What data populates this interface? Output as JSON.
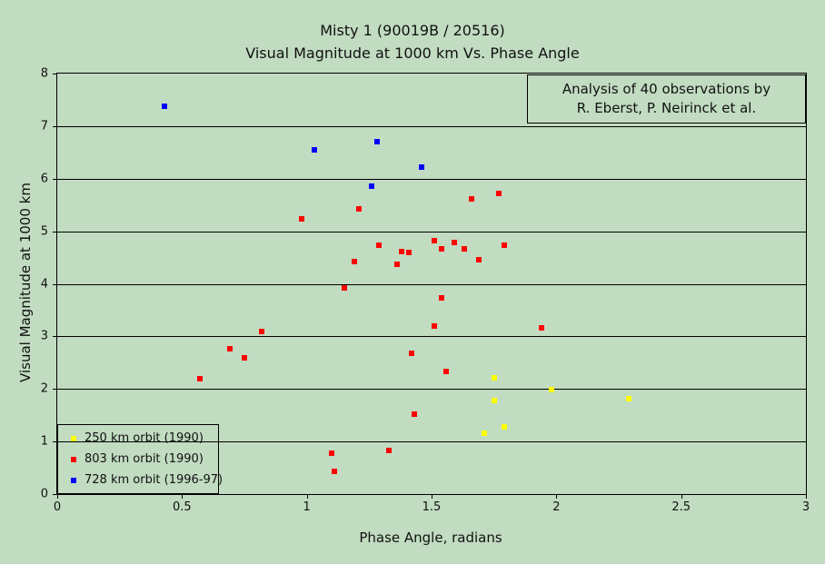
{
  "title": {
    "line1": "Misty 1 (90019B / 20516)",
    "line2": "Visual Magnitude at 1000 km Vs. Phase Angle"
  },
  "annotation": {
    "line1": "Analysis of 40 observations by",
    "line2": "R. Eberst, P. Neirinck et al."
  },
  "colors": {
    "background": "#c1dcc1",
    "axis": "#000000",
    "series_250km": "#ffff00",
    "series_803km": "#ff0000",
    "series_728km": "#0000ff"
  },
  "chart_data": {
    "type": "scatter",
    "title": "Misty 1 (90019B / 20516) — Visual Magnitude at 1000 km Vs. Phase Angle",
    "xlabel": "Phase Angle, radians",
    "ylabel": "Visual Magnitude at 1000 km",
    "xlim": [
      0,
      3
    ],
    "ylim": [
      0,
      8
    ],
    "xticks": [
      0,
      0.5,
      1,
      1.5,
      2,
      2.5,
      3
    ],
    "yticks": [
      0,
      1,
      2,
      3,
      4,
      5,
      6,
      7,
      8
    ],
    "grid": "horizontal-only",
    "legend_position": "bottom-left-inside",
    "annotation_text": "Analysis of 40 observations by R. Eberst, P. Neirinck et al.",
    "marker": "square",
    "series": [
      {
        "name": "250 km orbit (1990)",
        "color": "#ffff00",
        "points": [
          [
            1.75,
            2.21
          ],
          [
            1.98,
            1.98
          ],
          [
            1.75,
            1.78
          ],
          [
            2.29,
            1.82
          ],
          [
            1.79,
            1.27
          ],
          [
            1.71,
            1.15
          ]
        ]
      },
      {
        "name": "803 km orbit (1990)",
        "color": "#ff0000",
        "points": [
          [
            0.57,
            2.19
          ],
          [
            0.69,
            2.77
          ],
          [
            0.75,
            2.59
          ],
          [
            0.82,
            3.1
          ],
          [
            0.98,
            5.23
          ],
          [
            1.1,
            0.78
          ],
          [
            1.11,
            0.43
          ],
          [
            1.15,
            3.93
          ],
          [
            1.19,
            4.43
          ],
          [
            1.21,
            5.43
          ],
          [
            1.29,
            4.73
          ],
          [
            1.33,
            0.83
          ],
          [
            1.36,
            4.38
          ],
          [
            1.38,
            4.62
          ],
          [
            1.41,
            4.59
          ],
          [
            1.42,
            2.68
          ],
          [
            1.43,
            1.52
          ],
          [
            1.51,
            4.82
          ],
          [
            1.51,
            3.2
          ],
          [
            1.54,
            4.67
          ],
          [
            1.54,
            3.73
          ],
          [
            1.56,
            2.34
          ],
          [
            1.59,
            4.78
          ],
          [
            1.63,
            4.66
          ],
          [
            1.66,
            5.62
          ],
          [
            1.69,
            4.45
          ],
          [
            1.77,
            5.72
          ],
          [
            1.79,
            4.74
          ],
          [
            1.94,
            3.16
          ]
        ]
      },
      {
        "name": "728 km orbit (1996-97)",
        "color": "#0000ff",
        "points": [
          [
            0.43,
            7.38
          ],
          [
            1.03,
            6.55
          ],
          [
            1.26,
            5.85
          ],
          [
            1.28,
            6.7
          ],
          [
            1.46,
            6.22
          ]
        ]
      }
    ]
  }
}
